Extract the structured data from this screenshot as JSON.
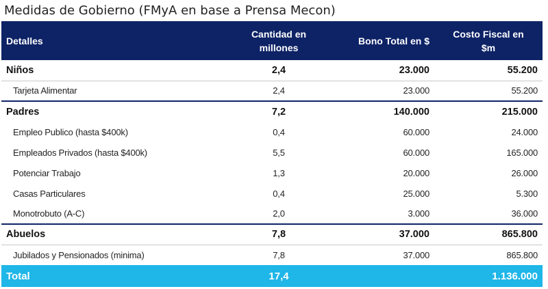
{
  "title": "Medidas de Gobierno (FMyA en base a Prensa Mecon)",
  "headers": {
    "detalles": "Detalles",
    "cantidad_line1": "Cantidad en",
    "cantidad_line2": "millones",
    "bono": "Bono Total en $",
    "costo_line1": "Costo Fiscal en",
    "costo_line2": "$m"
  },
  "groups": [
    {
      "name": "Niños",
      "cantidad": "2,4",
      "bono": "23.000",
      "costo": "55.200",
      "items": [
        {
          "name": "Tarjeta Alimentar",
          "cantidad": "2,4",
          "bono": "23.000",
          "costo": "55.200"
        }
      ]
    },
    {
      "name": "Padres",
      "cantidad": "7,2",
      "bono": "140.000",
      "costo": "215.000",
      "items": [
        {
          "name": "Empleo Publico (hasta $400k)",
          "cantidad": "0,4",
          "bono": "60.000",
          "costo": "24.000"
        },
        {
          "name": "Empleados Privados (hasta $400k)",
          "cantidad": "5,5",
          "bono": "60.000",
          "costo": "165.000"
        },
        {
          "name": "Potenciar Trabajo",
          "cantidad": "1,3",
          "bono": "20.000",
          "costo": "26.000"
        },
        {
          "name": "Casas Particulares",
          "cantidad": "0,4",
          "bono": "25.000",
          "costo": "5.300"
        },
        {
          "name": "Monotrobuto (A-C)",
          "cantidad": "2,0",
          "bono": "3.000",
          "costo": "36.000"
        }
      ]
    },
    {
      "name": "Abuelos",
      "cantidad": "7,8",
      "bono": "37.000",
      "costo": "865.800",
      "items": [
        {
          "name": "Jubilados y Pensionados (minima)",
          "cantidad": "7,8",
          "bono": "37.000",
          "costo": "865.800"
        }
      ]
    }
  ],
  "total": {
    "label": "Total",
    "cantidad": "17,4",
    "costo": "1.136.000"
  }
}
